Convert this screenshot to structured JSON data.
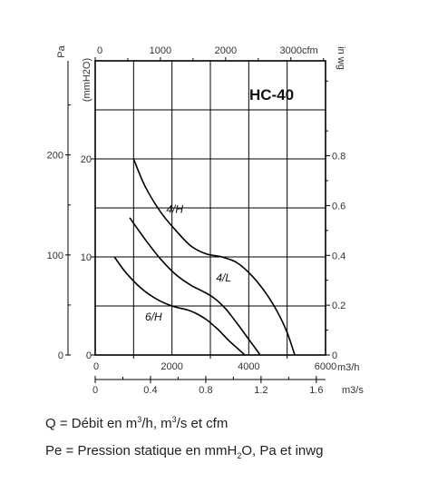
{
  "chart_data": {
    "type": "line",
    "title": "HC-40",
    "x_axes": {
      "top": {
        "unit": "cfm",
        "ticks": [
          "0",
          "1000",
          "2000",
          "3000"
        ]
      },
      "flow_m3h": {
        "unit": "m3/h",
        "ticks": [
          "0",
          "2000",
          "4000",
          "6000"
        ],
        "range": [
          0,
          6000
        ]
      },
      "flow_m3s": {
        "unit": "m3/s",
        "ticks": [
          "0",
          "0.4",
          "0.8",
          "1.2",
          "1.6"
        ]
      }
    },
    "y_axes": {
      "pa": {
        "label": "Pa",
        "ticks": [
          "0",
          "100",
          "200"
        ]
      },
      "mmh2o": {
        "label": "(mmH2O)",
        "ticks": [
          "0",
          "10",
          "20"
        ],
        "range": [
          0,
          30
        ]
      },
      "inwg": {
        "label": "in wg",
        "ticks": [
          "0",
          "0.2",
          "0.4",
          "0.6",
          "0.8"
        ]
      }
    },
    "grid": true,
    "series": [
      {
        "name": "4/H",
        "x": [
          1000,
          1300,
          1700,
          2100,
          2500,
          2900,
          3300,
          3700,
          4100,
          4500,
          4800,
          5000,
          5200
        ],
        "y": [
          20,
          17.2,
          14.6,
          12.7,
          11.1,
          10.3,
          10.0,
          9.4,
          8.0,
          6.0,
          4.0,
          2.3,
          0
        ]
      },
      {
        "name": "4/L",
        "x": [
          900,
          1300,
          1700,
          2100,
          2500,
          2800,
          3100,
          3400,
          3700,
          4000,
          4300
        ],
        "y": [
          14,
          11.8,
          9.8,
          8.2,
          7.1,
          6.5,
          5.8,
          4.7,
          3.2,
          1.6,
          0
        ]
      },
      {
        "name": "6/H",
        "x": [
          500,
          800,
          1200,
          1600,
          2000,
          2400,
          2600,
          2900,
          3200,
          3500,
          3700,
          3900
        ],
        "y": [
          10,
          8.4,
          6.8,
          5.7,
          5.0,
          4.6,
          4.3,
          3.6,
          2.6,
          1.4,
          0.7,
          0
        ]
      }
    ]
  },
  "captions": {
    "q": {
      "pre": "Q = Débit en m",
      "s1": "3",
      "mid": "/h, m",
      "s2": "3",
      "post": "/s et cfm"
    },
    "pe": {
      "pre": "Pe = Pression statique en mmH",
      "sub": "2",
      "post": "O, Pa et inwg"
    }
  }
}
